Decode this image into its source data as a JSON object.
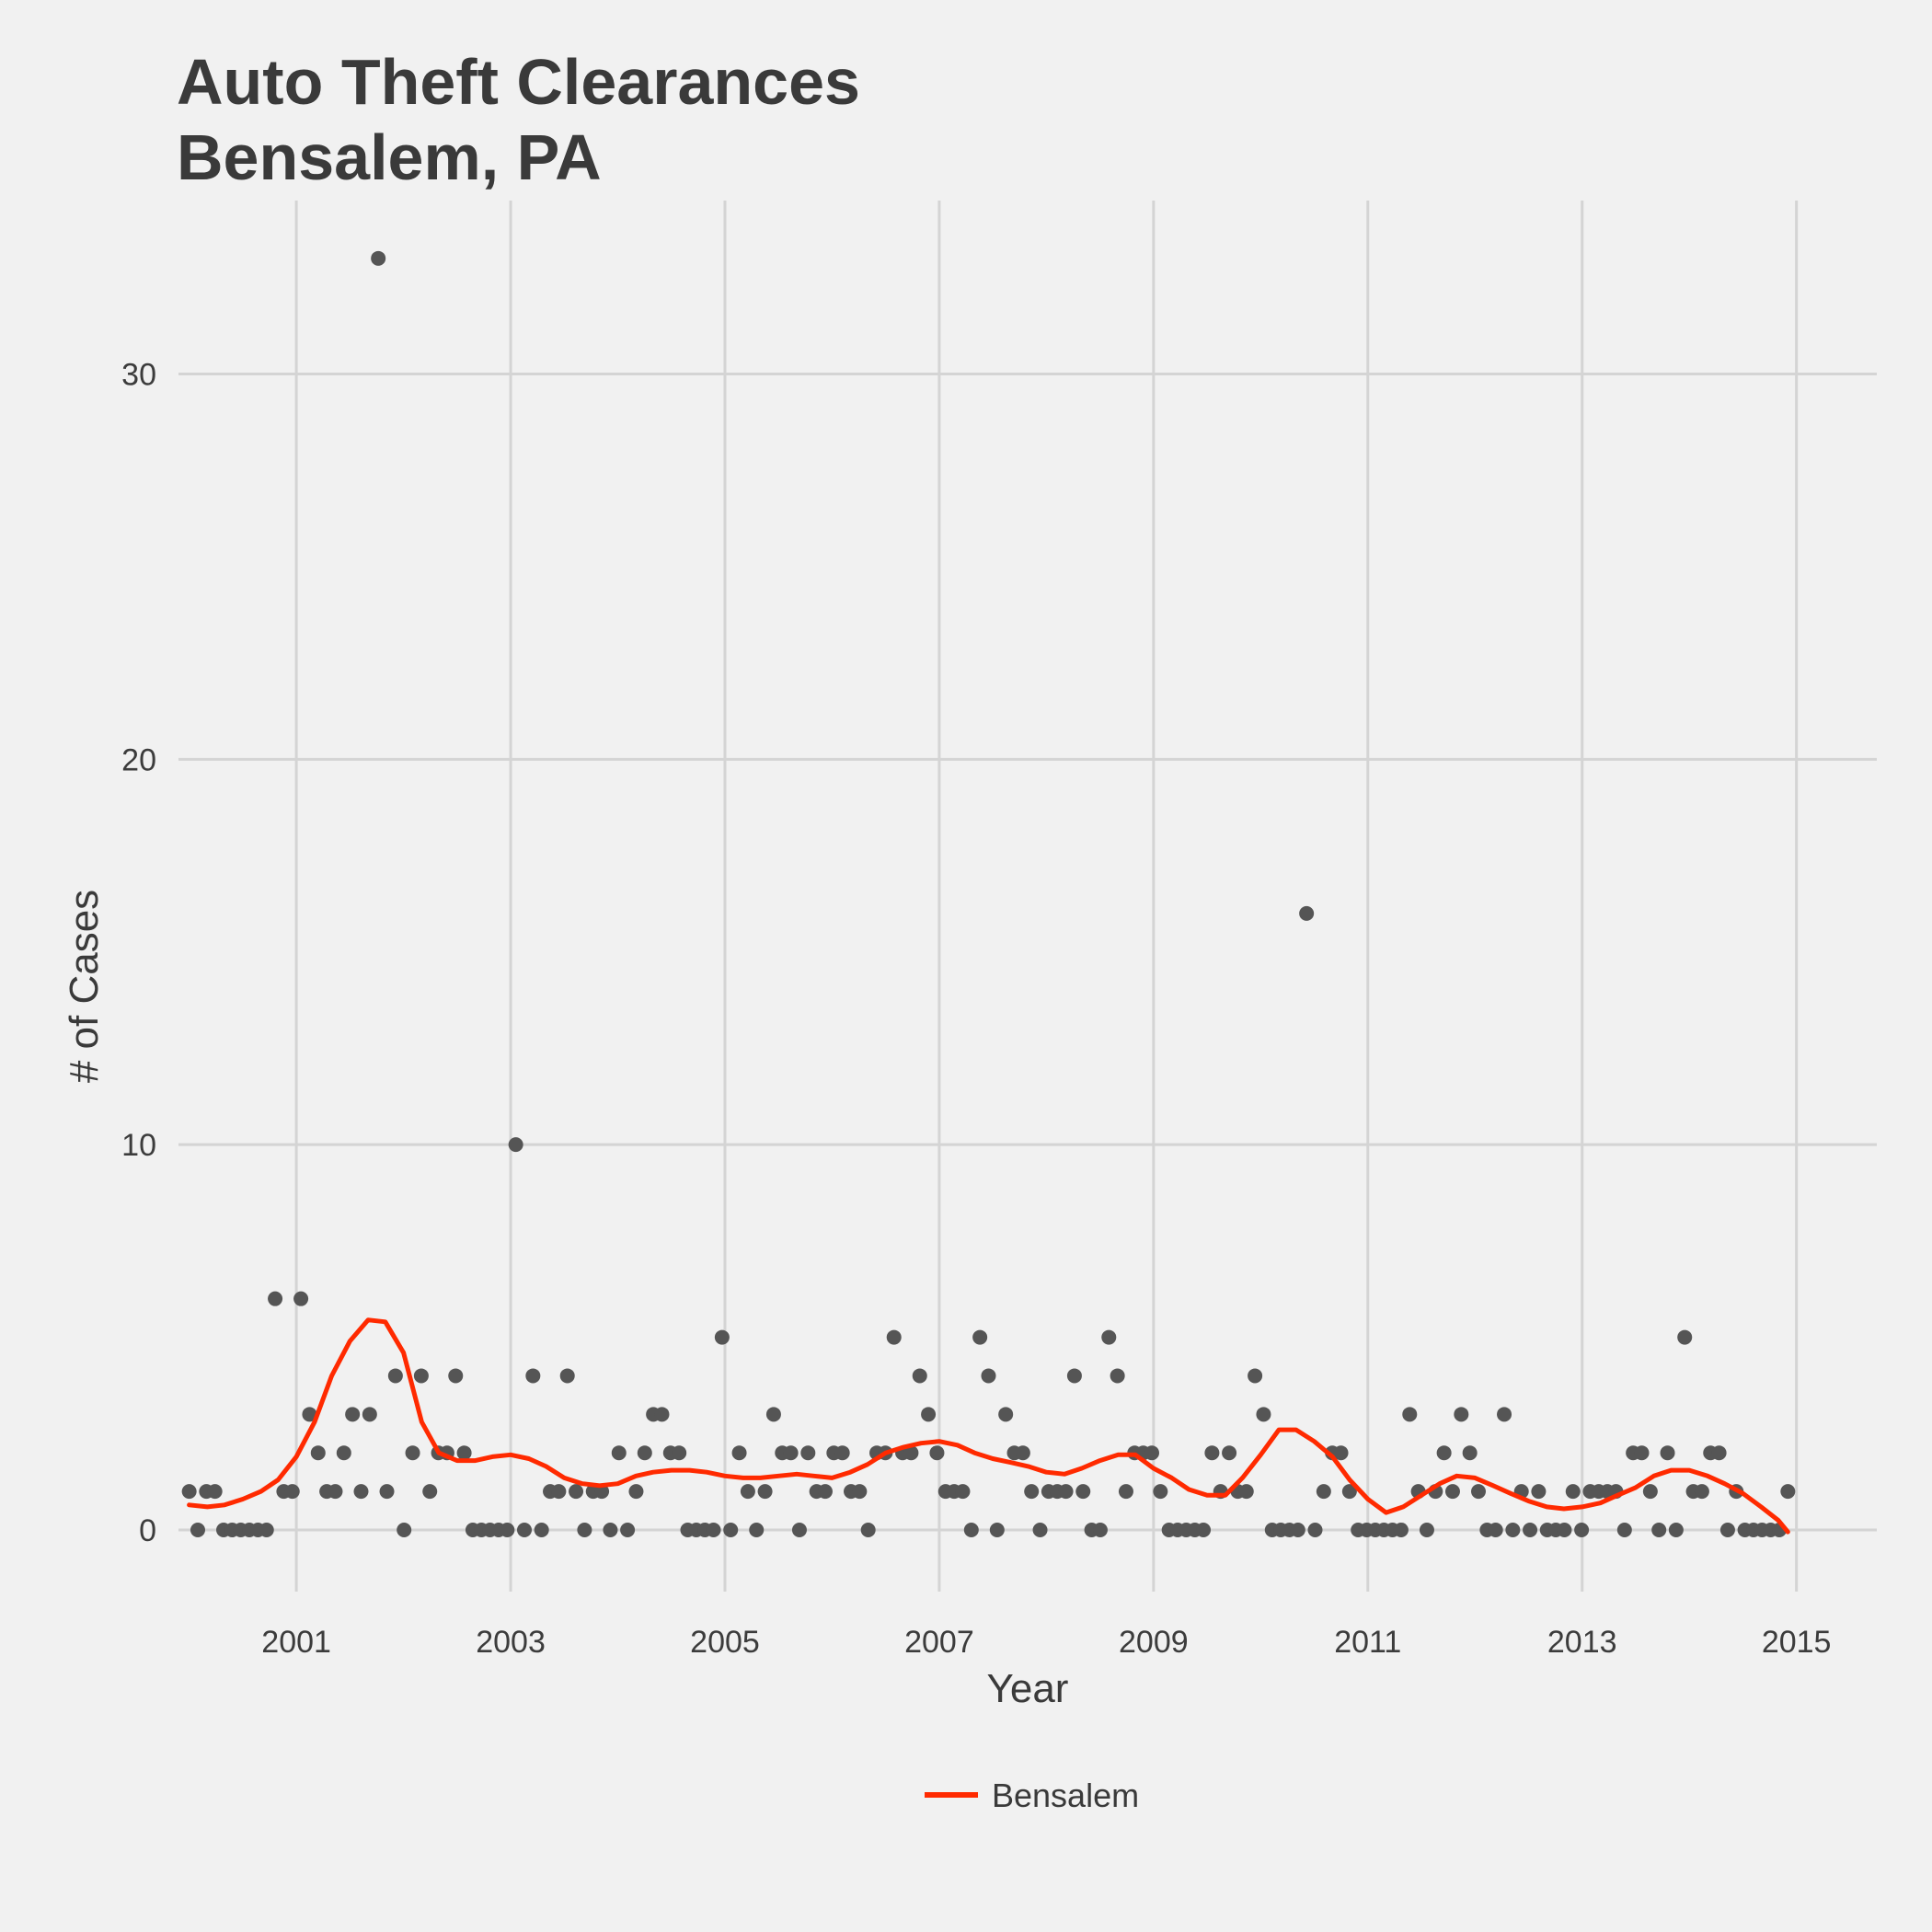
{
  "chart_data": {
    "type": "scatter",
    "title": "Auto Theft Clearances",
    "subtitle": "Bensalem, PA",
    "xlabel": "Year",
    "ylabel": "# of Cases",
    "xlim": [
      1999.9,
      2015.75
    ],
    "ylim": [
      -1.6,
      34.5
    ],
    "xticks": [
      2001,
      2003,
      2005,
      2007,
      2009,
      2011,
      2013,
      2015
    ],
    "yticks": [
      0,
      10,
      20,
      30
    ],
    "grid": true,
    "legend": "bottom",
    "colors": {
      "points": "#555555",
      "line": "#ff2a00",
      "grid": "#d4d4d4",
      "background": "#f1f1f1"
    },
    "series": [
      {
        "kind": "scatter",
        "values": [
          1,
          0,
          1,
          1,
          0,
          0,
          0,
          0,
          0,
          0,
          6,
          1,
          1,
          6,
          3,
          2,
          1,
          1,
          2,
          3,
          1,
          3,
          33,
          1,
          4,
          0,
          2,
          4,
          1,
          2,
          2,
          4,
          2,
          0,
          0,
          0,
          0,
          0,
          10,
          0,
          4,
          0,
          1,
          1,
          4,
          1,
          0,
          1,
          1,
          0,
          2,
          0,
          1,
          2,
          3,
          3,
          2,
          2,
          0,
          0,
          0,
          0,
          5,
          0,
          2,
          1,
          0,
          1,
          3,
          2,
          2,
          0,
          2,
          1,
          1,
          2,
          2,
          1,
          1,
          0,
          2,
          2,
          5,
          2,
          2,
          4,
          3,
          2,
          1,
          1,
          1,
          0,
          5,
          4,
          0,
          3,
          2,
          2,
          1,
          0,
          1,
          1,
          1,
          4,
          1,
          0,
          0,
          5,
          4,
          1,
          2,
          2,
          2,
          1,
          0,
          0,
          0,
          0,
          0,
          2,
          1,
          2,
          1,
          1,
          4,
          3,
          0,
          0,
          0,
          0,
          16,
          0,
          1,
          2,
          2,
          1,
          0,
          0,
          0,
          0,
          0,
          0,
          3,
          1,
          0,
          1,
          2,
          1,
          3,
          2,
          1,
          0,
          0,
          3,
          0,
          1,
          0,
          1,
          0,
          0,
          0,
          1,
          0,
          1,
          1,
          1,
          1,
          0,
          2,
          2,
          1,
          0,
          2,
          0,
          5,
          1,
          1,
          2,
          2,
          0,
          1,
          0,
          0,
          0,
          0,
          0,
          1
        ]
      },
      {
        "name": "Bensalem",
        "kind": "line",
        "x": [
          2000.0,
          2000.17,
          2000.33,
          2000.5,
          2000.67,
          2000.83,
          2001.0,
          2001.17,
          2001.33,
          2001.5,
          2001.67,
          2001.83,
          2002.0,
          2002.17,
          2002.33,
          2002.5,
          2002.67,
          2002.83,
          2003.0,
          2003.17,
          2003.33,
          2003.5,
          2003.67,
          2003.83,
          2004.0,
          2004.17,
          2004.33,
          2004.5,
          2004.67,
          2004.83,
          2005.0,
          2005.17,
          2005.33,
          2005.5,
          2005.67,
          2005.83,
          2006.0,
          2006.17,
          2006.33,
          2006.5,
          2006.67,
          2006.83,
          2007.0,
          2007.17,
          2007.33,
          2007.5,
          2007.67,
          2007.83,
          2008.0,
          2008.17,
          2008.33,
          2008.5,
          2008.67,
          2008.83,
          2009.0,
          2009.17,
          2009.33,
          2009.5,
          2009.67,
          2009.83,
          2010.0,
          2010.17,
          2010.33,
          2010.5,
          2010.67,
          2010.83,
          2011.0,
          2011.17,
          2011.33,
          2011.5,
          2011.67,
          2011.83,
          2012.0,
          2012.17,
          2012.33,
          2012.5,
          2012.67,
          2012.83,
          2013.0,
          2013.17,
          2013.33,
          2013.5,
          2013.67,
          2013.83,
          2014.0,
          2014.17,
          2014.33,
          2014.5,
          2014.67,
          2014.83,
          2014.92
        ],
        "values": [
          0.65,
          0.6,
          0.65,
          0.8,
          1.0,
          1.3,
          1.9,
          2.8,
          4.0,
          4.9,
          5.45,
          5.4,
          4.6,
          2.8,
          2.0,
          1.8,
          1.8,
          1.9,
          1.95,
          1.85,
          1.65,
          1.35,
          1.2,
          1.15,
          1.2,
          1.4,
          1.5,
          1.55,
          1.55,
          1.5,
          1.4,
          1.35,
          1.35,
          1.4,
          1.45,
          1.4,
          1.35,
          1.5,
          1.7,
          2.0,
          2.15,
          2.25,
          2.3,
          2.2,
          2.0,
          1.85,
          1.75,
          1.65,
          1.5,
          1.45,
          1.6,
          1.8,
          1.95,
          1.95,
          1.6,
          1.35,
          1.05,
          0.9,
          0.9,
          1.35,
          1.95,
          2.6,
          2.6,
          2.3,
          1.9,
          1.3,
          0.8,
          0.45,
          0.6,
          0.9,
          1.2,
          1.4,
          1.35,
          1.15,
          0.95,
          0.75,
          0.6,
          0.55,
          0.6,
          0.7,
          0.9,
          1.1,
          1.4,
          1.55,
          1.55,
          1.4,
          1.2,
          0.95,
          0.6,
          0.25,
          -0.05
        ]
      }
    ]
  }
}
